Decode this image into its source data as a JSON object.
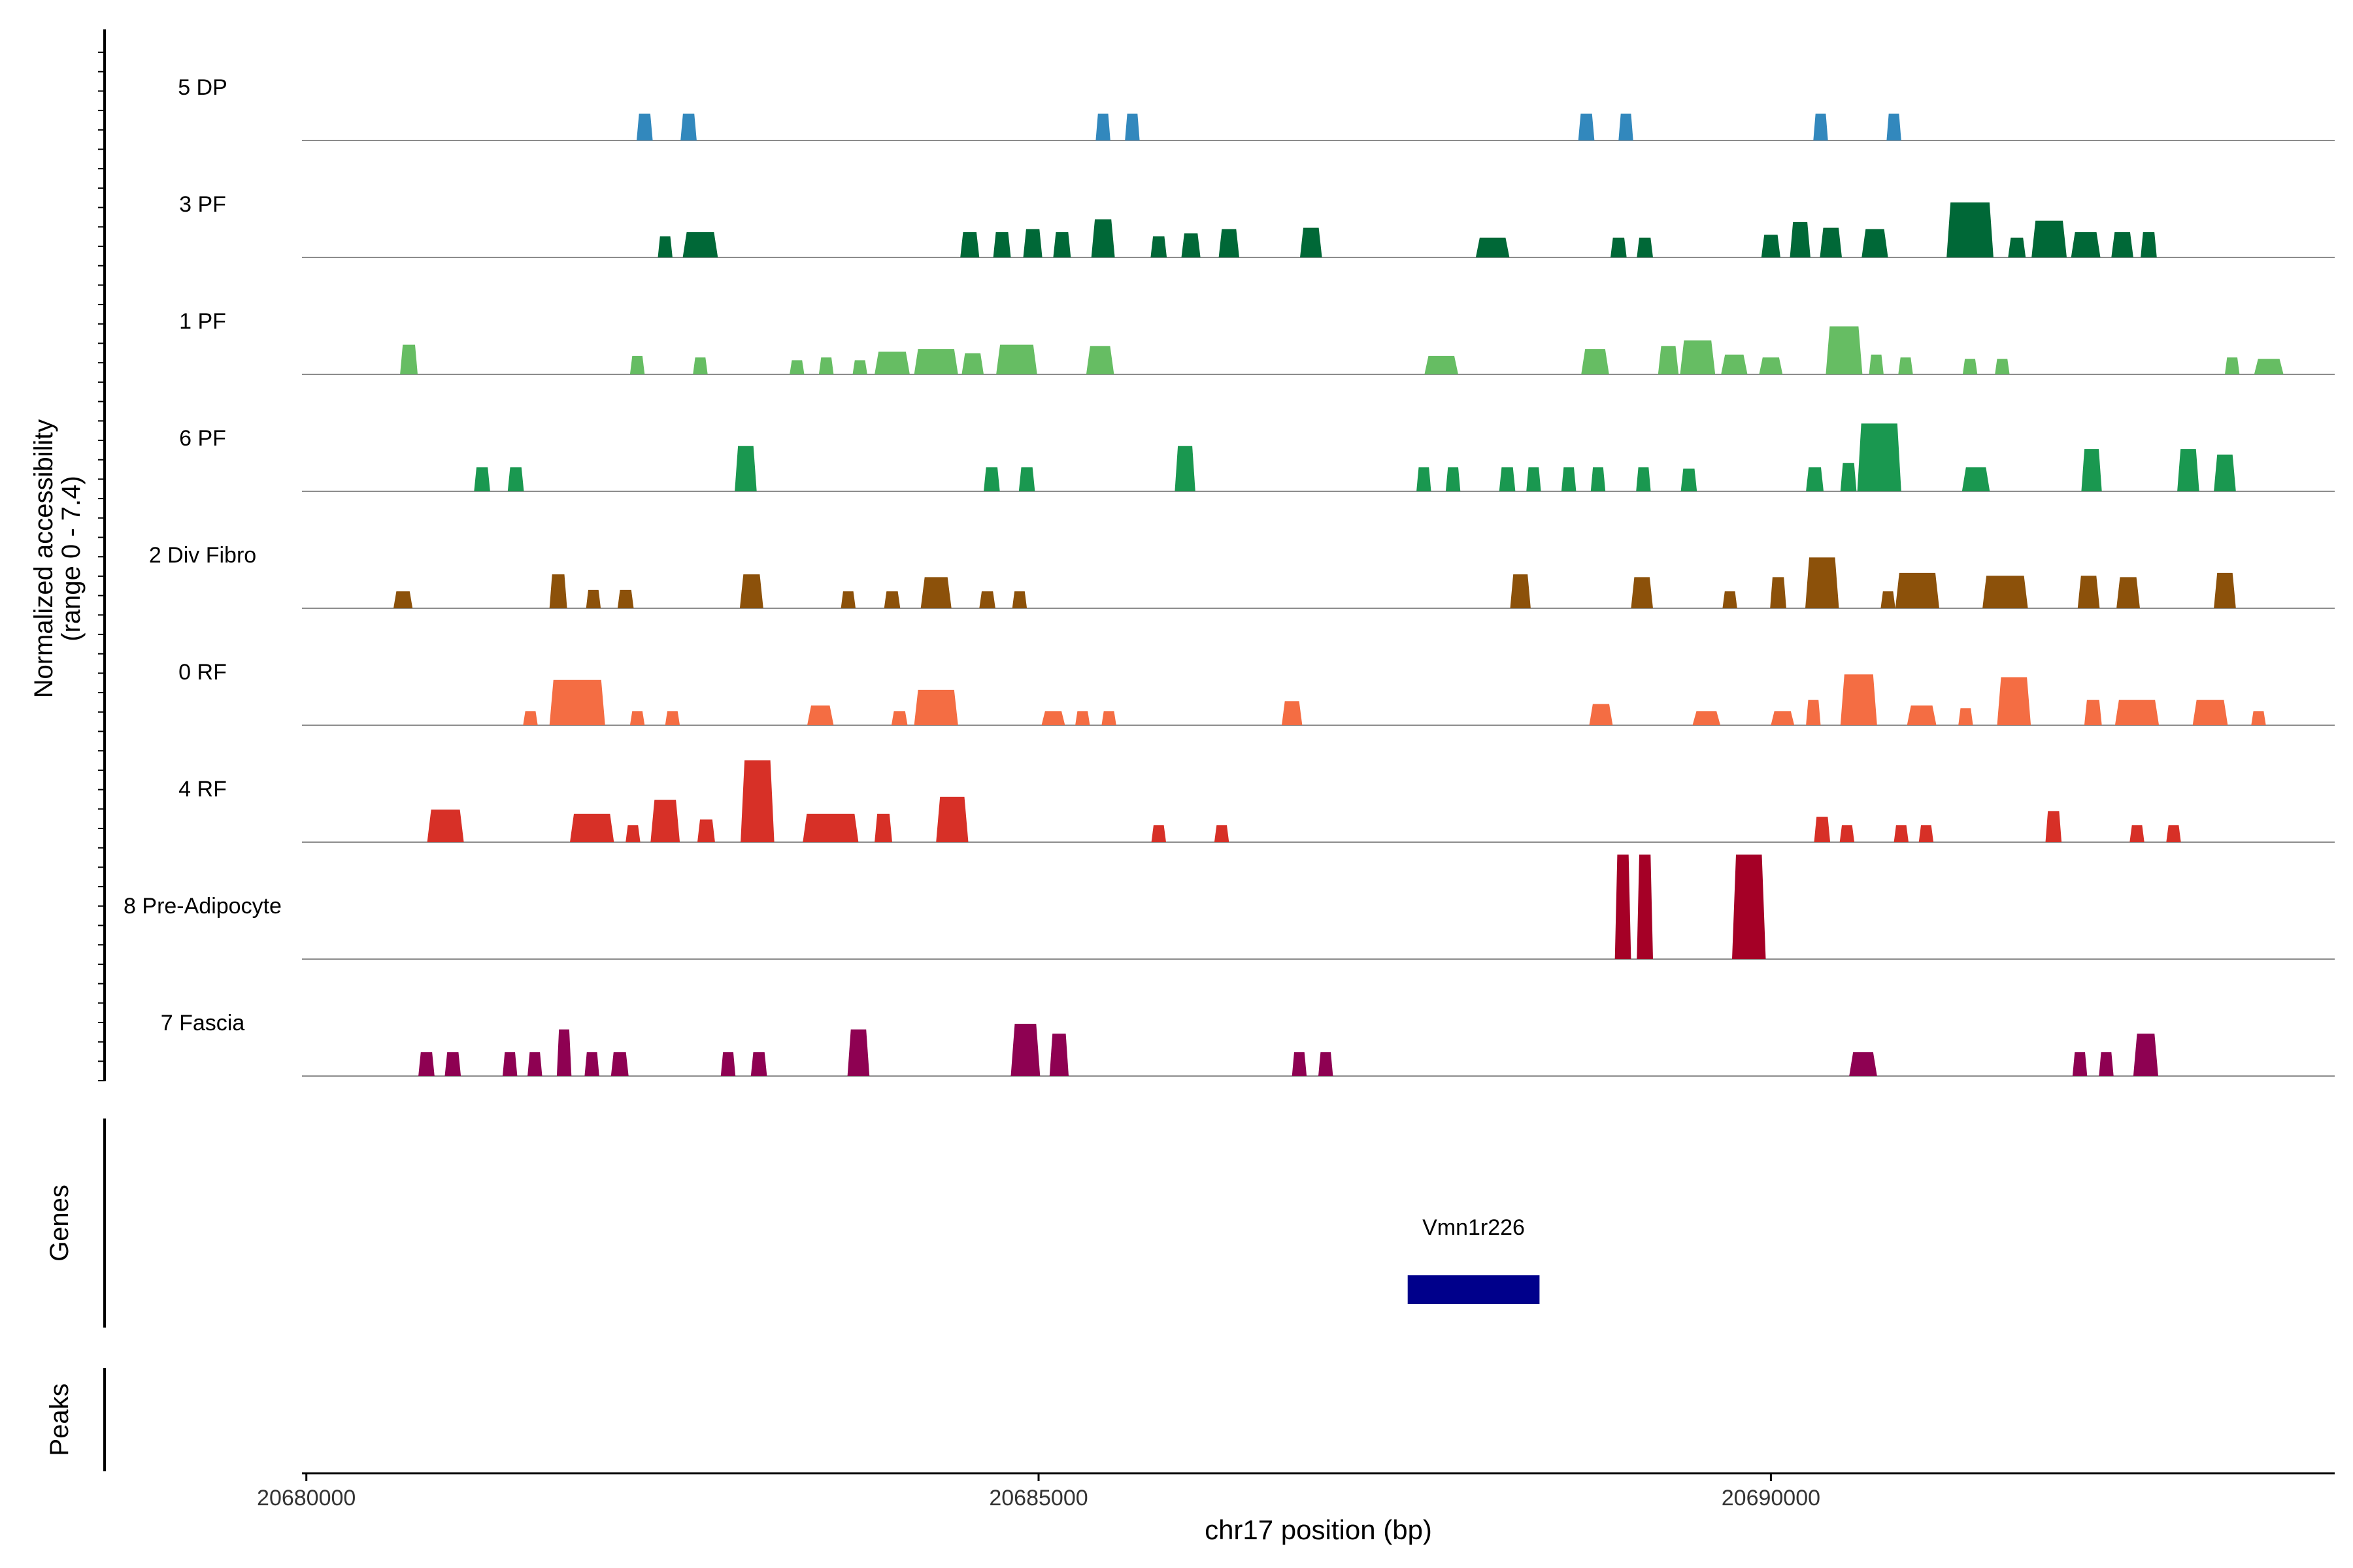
{
  "chart_data": {
    "type": "area",
    "title": "",
    "ylabel_line1": "Normalized accessibility",
    "ylabel_line2": "(range 0 - 7.4)",
    "xlabel": "chr17 position (bp)",
    "xlim": [
      20679970,
      20693850
    ],
    "ylim": [
      0,
      7.4
    ],
    "xticks": [
      {
        "value": 20680000,
        "label": "20680000"
      },
      {
        "value": 20685000,
        "label": "20685000"
      },
      {
        "value": 20690000,
        "label": "20690000"
      }
    ],
    "panel_labels": {
      "genes": "Genes",
      "peaks": "Peaks"
    },
    "tracks": [
      {
        "name": "5 DP",
        "color": "#3288bd",
        "peaks": [
          [
            20682310,
            1.9,
            110
          ],
          [
            20682610,
            1.9,
            110
          ],
          [
            20685440,
            1.9,
            100
          ],
          [
            20685640,
            1.9,
            100
          ],
          [
            20688740,
            1.9,
            110
          ],
          [
            20689010,
            1.9,
            100
          ],
          [
            20690340,
            1.9,
            100
          ],
          [
            20690840,
            1.9,
            100
          ]
        ]
      },
      {
        "name": "3 PF",
        "color": "#006837",
        "peaks": [
          [
            20682450,
            1.5,
            100
          ],
          [
            20682690,
            1.8,
            240
          ],
          [
            20684530,
            1.8,
            130
          ],
          [
            20684750,
            1.8,
            120
          ],
          [
            20684960,
            2.0,
            130
          ],
          [
            20685160,
            1.8,
            120
          ],
          [
            20685440,
            2.7,
            160
          ],
          [
            20685820,
            1.5,
            110
          ],
          [
            20686040,
            1.7,
            130
          ],
          [
            20686300,
            2.0,
            140
          ],
          [
            20686860,
            2.1,
            150
          ],
          [
            20688100,
            1.4,
            230
          ],
          [
            20688960,
            1.4,
            110
          ],
          [
            20689140,
            1.4,
            110
          ],
          [
            20690000,
            1.6,
            130
          ],
          [
            20690200,
            2.5,
            140
          ],
          [
            20690410,
            2.1,
            150
          ],
          [
            20690710,
            2.0,
            180
          ],
          [
            20691360,
            3.9,
            320
          ],
          [
            20691680,
            1.4,
            120
          ],
          [
            20691900,
            2.6,
            240
          ],
          [
            20692150,
            1.8,
            200
          ],
          [
            20692400,
            1.8,
            150
          ],
          [
            20692580,
            1.8,
            110
          ]
        ]
      },
      {
        "name": "1 PF",
        "color": "#66bd63",
        "peaks": [
          [
            20680700,
            2.1,
            120
          ],
          [
            20682260,
            1.3,
            100
          ],
          [
            20682690,
            1.2,
            100
          ],
          [
            20683350,
            1.0,
            100
          ],
          [
            20683550,
            1.2,
            100
          ],
          [
            20683780,
            1.0,
            100
          ],
          [
            20684000,
            1.6,
            240
          ],
          [
            20684300,
            1.8,
            300
          ],
          [
            20684550,
            1.5,
            150
          ],
          [
            20684850,
            2.1,
            280
          ],
          [
            20685420,
            2.0,
            190
          ],
          [
            20687750,
            1.3,
            230
          ],
          [
            20688800,
            1.8,
            190
          ],
          [
            20689300,
            2.0,
            140
          ],
          [
            20689500,
            2.4,
            240
          ],
          [
            20689750,
            1.4,
            180
          ],
          [
            20690000,
            1.2,
            160
          ],
          [
            20690500,
            3.4,
            250
          ],
          [
            20690720,
            1.4,
            100
          ],
          [
            20690920,
            1.2,
            100
          ],
          [
            20691360,
            1.1,
            100
          ],
          [
            20691580,
            1.1,
            100
          ],
          [
            20693150,
            1.2,
            100
          ],
          [
            20693400,
            1.1,
            200
          ]
        ]
      },
      {
        "name": "6 PF",
        "color": "#1a9850",
        "peaks": [
          [
            20681200,
            1.7,
            110
          ],
          [
            20681430,
            1.7,
            110
          ],
          [
            20683000,
            3.2,
            150
          ],
          [
            20684680,
            1.7,
            110
          ],
          [
            20684920,
            1.7,
            110
          ],
          [
            20686000,
            3.2,
            140
          ],
          [
            20687630,
            1.7,
            100
          ],
          [
            20687830,
            1.7,
            100
          ],
          [
            20688200,
            1.7,
            110
          ],
          [
            20688380,
            1.7,
            100
          ],
          [
            20688620,
            1.7,
            100
          ],
          [
            20688820,
            1.7,
            100
          ],
          [
            20689130,
            1.7,
            100
          ],
          [
            20689440,
            1.6,
            110
          ],
          [
            20690300,
            1.7,
            120
          ],
          [
            20690530,
            2.0,
            110
          ],
          [
            20690740,
            4.8,
            300
          ],
          [
            20691400,
            1.7,
            190
          ],
          [
            20692190,
            3.0,
            140
          ],
          [
            20692850,
            3.0,
            150
          ],
          [
            20693100,
            2.6,
            150
          ]
        ]
      },
      {
        "name": "2 Div Fibro",
        "color": "#8c510a",
        "peaks": [
          [
            20680660,
            1.2,
            130
          ],
          [
            20681720,
            2.4,
            120
          ],
          [
            20681960,
            1.3,
            100
          ],
          [
            20682180,
            1.3,
            110
          ],
          [
            20683040,
            2.4,
            160
          ],
          [
            20683700,
            1.2,
            100
          ],
          [
            20684000,
            1.2,
            110
          ],
          [
            20684300,
            2.2,
            210
          ],
          [
            20684650,
            1.2,
            110
          ],
          [
            20684870,
            1.2,
            100
          ],
          [
            20688290,
            2.4,
            140
          ],
          [
            20689120,
            2.2,
            150
          ],
          [
            20689720,
            1.2,
            100
          ],
          [
            20690050,
            2.2,
            110
          ],
          [
            20690350,
            3.6,
            230
          ],
          [
            20690800,
            1.2,
            100
          ],
          [
            20691000,
            2.5,
            300
          ],
          [
            20691600,
            2.3,
            310
          ],
          [
            20692170,
            2.3,
            150
          ],
          [
            20692440,
            2.2,
            160
          ],
          [
            20693100,
            2.5,
            150
          ]
        ]
      },
      {
        "name": "0 RF",
        "color": "#f46d43",
        "peaks": [
          [
            20681530,
            1.0,
            100
          ],
          [
            20681850,
            3.2,
            380
          ],
          [
            20682260,
            1.0,
            100
          ],
          [
            20682500,
            1.0,
            100
          ],
          [
            20683510,
            1.4,
            180
          ],
          [
            20684050,
            1.0,
            110
          ],
          [
            20684300,
            2.5,
            300
          ],
          [
            20685100,
            1.0,
            160
          ],
          [
            20685300,
            1.0,
            100
          ],
          [
            20685480,
            1.0,
            100
          ],
          [
            20686730,
            1.7,
            140
          ],
          [
            20688840,
            1.5,
            160
          ],
          [
            20689560,
            1.0,
            190
          ],
          [
            20690080,
            1.0,
            160
          ],
          [
            20690290,
            1.8,
            100
          ],
          [
            20690600,
            3.6,
            250
          ],
          [
            20691030,
            1.4,
            200
          ],
          [
            20691330,
            1.2,
            100
          ],
          [
            20691660,
            3.4,
            230
          ],
          [
            20692200,
            1.8,
            120
          ],
          [
            20692500,
            1.8,
            300
          ],
          [
            20693000,
            1.8,
            240
          ],
          [
            20693330,
            1.0,
            100
          ]
        ]
      },
      {
        "name": "4 RF",
        "color": "#d73027",
        "peaks": [
          [
            20680950,
            2.3,
            250
          ],
          [
            20681950,
            2.0,
            300
          ],
          [
            20682230,
            1.2,
            100
          ],
          [
            20682450,
            3.0,
            200
          ],
          [
            20682730,
            1.6,
            120
          ],
          [
            20683080,
            5.8,
            230
          ],
          [
            20683580,
            2.0,
            380
          ],
          [
            20683940,
            2.0,
            120
          ],
          [
            20684410,
            3.2,
            220
          ],
          [
            20685820,
            1.2,
            100
          ],
          [
            20686250,
            1.2,
            100
          ],
          [
            20690350,
            1.8,
            110
          ],
          [
            20690520,
            1.2,
            100
          ],
          [
            20690890,
            1.2,
            100
          ],
          [
            20691060,
            1.2,
            100
          ],
          [
            20691930,
            2.2,
            110
          ],
          [
            20692500,
            1.2,
            100
          ],
          [
            20692750,
            1.2,
            100
          ]
        ]
      },
      {
        "name": "8 Pre-Adipocyte",
        "color": "#a50026",
        "peaks": [
          [
            20688990,
            7.4,
            110
          ],
          [
            20689140,
            7.4,
            110
          ],
          [
            20689850,
            7.4,
            230
          ]
        ]
      },
      {
        "name": "7 Fascia",
        "color": "#8e0152",
        "peaks": [
          [
            20680820,
            1.7,
            110
          ],
          [
            20681000,
            1.7,
            110
          ],
          [
            20681390,
            1.7,
            100
          ],
          [
            20681560,
            1.7,
            100
          ],
          [
            20681760,
            3.3,
            100
          ],
          [
            20681950,
            1.7,
            100
          ],
          [
            20682140,
            1.7,
            120
          ],
          [
            20682880,
            1.7,
            100
          ],
          [
            20683090,
            1.7,
            110
          ],
          [
            20683770,
            3.3,
            150
          ],
          [
            20684910,
            3.7,
            200
          ],
          [
            20685140,
            3.0,
            130
          ],
          [
            20686780,
            1.7,
            100
          ],
          [
            20686960,
            1.7,
            100
          ],
          [
            20690630,
            1.7,
            190
          ],
          [
            20692110,
            1.7,
            100
          ],
          [
            20692290,
            1.7,
            100
          ],
          [
            20692560,
            3.0,
            170
          ]
        ]
      }
    ],
    "genes": [
      {
        "name": "Vmn1r226",
        "start": 20687520,
        "end": 20688420,
        "color": "#00008b"
      }
    ],
    "peaks_track": []
  }
}
